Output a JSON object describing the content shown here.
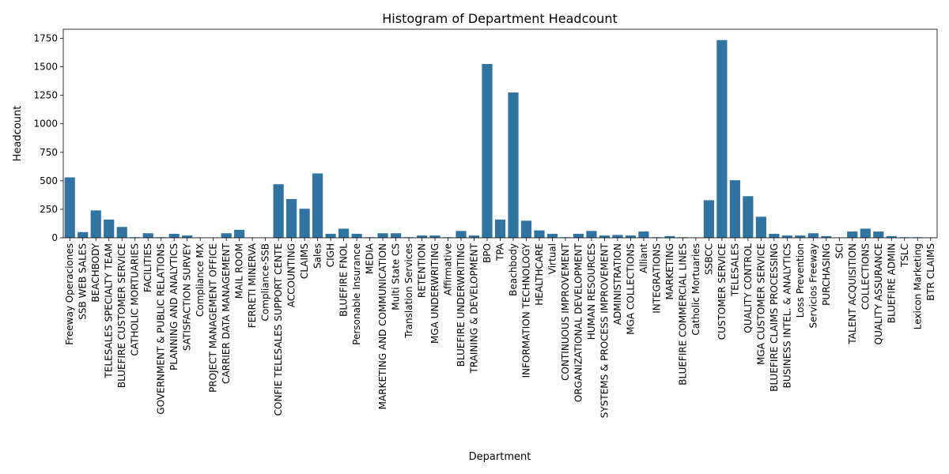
{
  "chart_data": {
    "type": "bar",
    "title": "Histogram of Department Headcount",
    "xlabel": "Department",
    "ylabel": "Headcount",
    "ylim": [
      0,
      1830
    ],
    "yticks": [
      0,
      250,
      500,
      750,
      1000,
      1250,
      1500,
      1750
    ],
    "ytick_labels": [
      "0",
      "250",
      "500",
      "750",
      "1000",
      "1250",
      "1500",
      "1750"
    ],
    "bar_color": "#3274a1",
    "grid": false,
    "legend": "none",
    "categories": [
      "Freeway Operaciones",
      "SSB WEB SALES",
      "BEACHBODY",
      "TELESALES SPECIALTY TEAM",
      "BLUEFIRE CUSTOMER SERVICE",
      "CATHOLIC MORTUARIES",
      "FACILITIES",
      "GOVERNMENT & PUBLIC RELATIONS",
      "PLANNING AND ANALYTICS",
      "SATISFACTION SURVEY",
      "Compliance MX",
      "PROJECT MANAGEMENT OFFICE",
      "CARRIER DATA MANAGEMENT",
      "MAIL ROOM",
      "FERRETI MINERVA",
      "Compliance-SSB",
      "CONFIE TELESALES SUPPORT CENTE",
      "ACCOUNTING",
      "CLAIMS",
      "Sales",
      "CIGH",
      "BLUEFIRE FNOL",
      "Personable Insurance",
      "MEDIA",
      "MARKETING AND COMMUNICATION",
      "Multi State CS",
      "Translation Services",
      "RETENTION",
      "MGA UNDERWRITING",
      "Affirmative",
      "BLUEFIRE UNDERWRITING",
      "TRAINING & DEVELOPMENT",
      "BPO",
      "TPA",
      "Beachbody",
      "INFORMATION TECHNOLOGY",
      "HEALTHCARE",
      "Virtual",
      "CONTINUOUS IMPROVEMENT",
      "ORGANIZATIONAL DEVELOPMENT",
      "HUMAN RESOURCES",
      "SYSTEMS & PROCESS IMPROVEMENT",
      "ADMINISTRATION",
      "MGA COLLECTIONS",
      "Alliant",
      "INTEGRATIONS",
      "MARKETING",
      "BLUEFIRE COMMERCIAL LINES",
      "Catholic Mortuaries",
      "SSBCC",
      "CUSTOMER SERVICE",
      "TELESALES",
      "QUALITY CONTROL",
      "MGA CUSTOMER SERVICE",
      "BLUEFIRE CLAIMS PROCESSING",
      "BUSINESS INTEL. & ANALYTICS",
      "Loss Prevention",
      "Servicios Freeway",
      "PURCHASING",
      "SCI",
      "TALENT ACQUISITION",
      "COLLECTIONS",
      "QUALITY ASSURANCE",
      "BLUEFIRE ADMIN",
      "TSLC",
      "Lexicon Marketing",
      "BTR CLAIMS"
    ],
    "values": [
      530,
      50,
      240,
      160,
      95,
      5,
      40,
      5,
      35,
      20,
      3,
      3,
      40,
      70,
      3,
      3,
      470,
      340,
      255,
      565,
      35,
      80,
      35,
      5,
      40,
      40,
      5,
      20,
      20,
      5,
      60,
      20,
      1525,
      160,
      1275,
      150,
      65,
      35,
      5,
      35,
      60,
      20,
      25,
      20,
      55,
      5,
      15,
      5,
      3,
      330,
      1735,
      505,
      365,
      185,
      35,
      20,
      20,
      40,
      15,
      3,
      55,
      80,
      55,
      15,
      5,
      5,
      3
    ]
  }
}
